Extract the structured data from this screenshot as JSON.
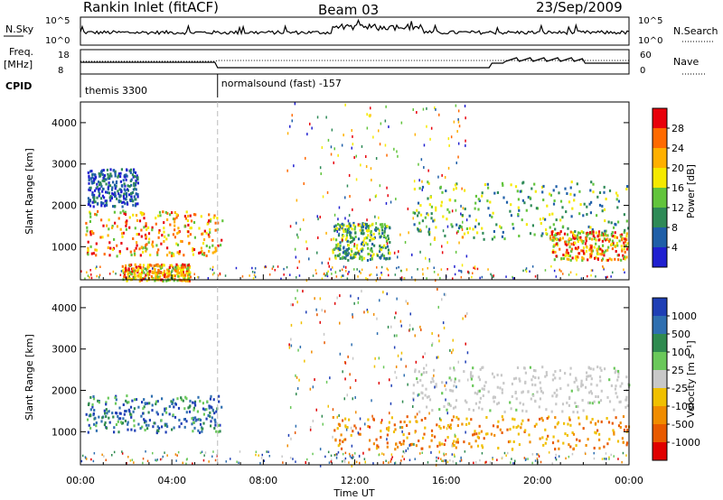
{
  "header": {
    "title": "Rankin Inlet (fitACF)",
    "beam": "Beam 03",
    "date": "23/Sep/2009"
  },
  "top_panel": {
    "left_label": "N.Sky",
    "right_label": "N.Search",
    "left_ticks": [
      "10^5",
      "10^0"
    ],
    "right_ticks": [
      "10^5",
      "10^0"
    ]
  },
  "freq_panel": {
    "left_label_line1": "Freq.",
    "left_label_line2": "[MHz]",
    "left_ticks": [
      "18",
      "8"
    ],
    "right_label": "Nave",
    "right_ticks": [
      "60",
      "0"
    ]
  },
  "cpid": {
    "label": "CPID",
    "mode1": "themis 3300",
    "mode2": "normalsound (fast) -157",
    "switch_time_hours": 6
  },
  "chart_data": [
    {
      "type": "heatmap",
      "panel": "power",
      "ylabel": "Slant Range [km]",
      "ylim": [
        200,
        4500
      ],
      "yticks": [
        1000,
        2000,
        3000,
        4000
      ],
      "xlim_hours": [
        0,
        24
      ],
      "colorbar_label": "Power [dB]",
      "colorbar_ticks": [
        "28",
        "24",
        "20",
        "16",
        "12",
        "8",
        "4"
      ],
      "colorbar_colors": [
        "#e8000b",
        "#ff6a00",
        "#ffb000",
        "#f5e900",
        "#62c43c",
        "#2e8a57",
        "#1f5fa8",
        "#2020d0"
      ],
      "regions": [
        {
          "t0": 0.2,
          "t1": 6.2,
          "r0": 800,
          "r1": 1900,
          "level": "high"
        },
        {
          "t0": 0.3,
          "t1": 2.5,
          "r0": 2000,
          "r1": 2900,
          "level": "low"
        },
        {
          "t0": 1.8,
          "t1": 4.8,
          "r0": 200,
          "r1": 600,
          "level": "high"
        },
        {
          "t0": 11.0,
          "t1": 13.5,
          "r0": 700,
          "r1": 1600,
          "level": "mid"
        },
        {
          "t0": 14.5,
          "t1": 24.0,
          "r0": 1200,
          "r1": 2600,
          "level": "mid"
        },
        {
          "t0": 20.5,
          "t1": 24.0,
          "r0": 700,
          "r1": 1400,
          "level": "high"
        }
      ]
    },
    {
      "type": "heatmap",
      "panel": "velocity",
      "ylabel": "Slant Range [km]",
      "xlabel": "Time UT",
      "ylim": [
        200,
        4500
      ],
      "yticks": [
        1000,
        2000,
        3000,
        4000
      ],
      "xlim_hours": [
        0,
        24
      ],
      "xticks": [
        "00:00",
        "04:00",
        "08:00",
        "12:00",
        "16:00",
        "20:00",
        "00:00"
      ],
      "colorbar_label": "Velocity [m s⁻¹]",
      "colorbar_ticks": [
        "1000",
        "500",
        "100",
        "25",
        "-25",
        "-100",
        "-500",
        "-1000"
      ],
      "colorbar_colors": [
        "#1f3fb5",
        "#2f6fb0",
        "#2f8a4f",
        "#6ac85a",
        "#c8c8c8",
        "#f0c000",
        "#f08c00",
        "#e85a00",
        "#e00000"
      ],
      "regions": [
        {
          "t0": 0.2,
          "t1": 6.2,
          "r0": 1000,
          "r1": 1900,
          "level": "pos"
        },
        {
          "t0": 14.5,
          "t1": 24.0,
          "r0": 1500,
          "r1": 2600,
          "level": "zero"
        },
        {
          "t0": 11.0,
          "t1": 24.0,
          "r0": 600,
          "r1": 1400,
          "level": "neg"
        }
      ]
    }
  ]
}
